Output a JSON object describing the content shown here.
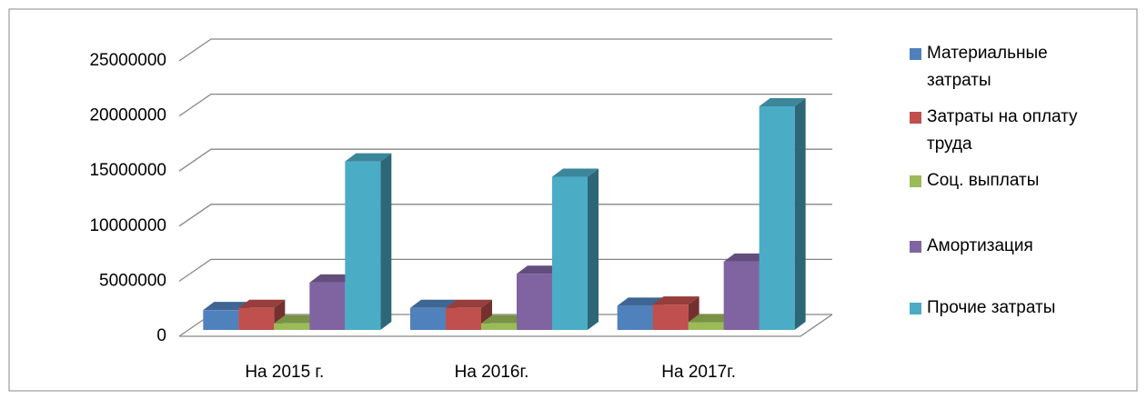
{
  "chart_data": {
    "type": "bar3d",
    "categories": [
      "На 2015 г.",
      "На 2016г.",
      "На 2017г."
    ],
    "series": [
      {
        "name": "Материальные затраты",
        "color": "#4f81bd",
        "values": [
          1800000,
          2000000,
          2200000
        ]
      },
      {
        "name": "Затраты на оплату труда",
        "color": "#c0504d",
        "values": [
          2000000,
          2000000,
          2300000
        ]
      },
      {
        "name": "Соц. выплаты",
        "color": "#9bbb59",
        "values": [
          600000,
          600000,
          700000
        ]
      },
      {
        "name": "Амортизация",
        "color": "#8064a2",
        "values": [
          4300000,
          5100000,
          6200000
        ]
      },
      {
        "name": "Прочие затраты",
        "color": "#4bacc6",
        "values": [
          15300000,
          13900000,
          20300000
        ]
      }
    ],
    "ylim": [
      0,
      25000000
    ],
    "yticks": [
      0,
      5000000,
      10000000,
      15000000,
      20000000,
      25000000
    ],
    "grid": true,
    "legend": "right"
  }
}
